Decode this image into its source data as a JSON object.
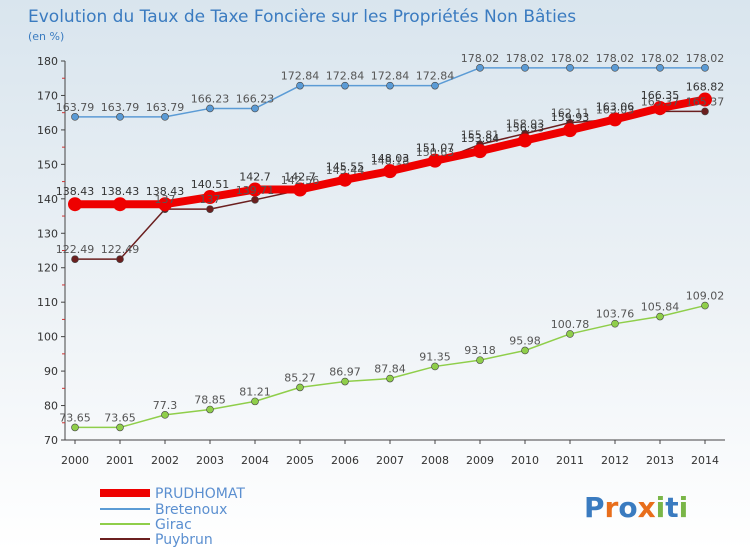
{
  "chart_data": {
    "type": "line",
    "title": "Evolution du Taux de Taxe Foncière sur les Propriétés Non Bâties",
    "subtitle": "(en %)",
    "x": [
      "2000",
      "2001",
      "2002",
      "2003",
      "2004",
      "2005",
      "2006",
      "2007",
      "2008",
      "2009",
      "2010",
      "2011",
      "2012",
      "2013",
      "2014"
    ],
    "ylim": [
      70,
      180
    ],
    "yticks": [
      70,
      80,
      90,
      100,
      110,
      120,
      130,
      140,
      150,
      160,
      170,
      180
    ],
    "grid": false,
    "legend_position": "bottom-left",
    "logo": "Proxiti",
    "series": [
      {
        "name": "PRUDHOMAT",
        "color": "#ee0000",
        "values": [
          138.43,
          138.43,
          138.43,
          140.51,
          142.7,
          142.7,
          145.55,
          148.03,
          151.07,
          153.84,
          156.93,
          159.93,
          163.06,
          166.35,
          168.82
        ],
        "labels": [
          "138.43",
          "138.43",
          "138.43",
          "140.51",
          "142.7",
          "142.7",
          "145.55",
          "148.03",
          "151.07",
          "153.84",
          "156.93",
          "159.93",
          "163.06",
          "166.35",
          "168.82"
        ]
      },
      {
        "name": "Bretenoux",
        "color": "#5b9bd5",
        "values": [
          163.79,
          163.79,
          163.79,
          166.23,
          166.23,
          172.84,
          172.84,
          172.84,
          172.84,
          178.02,
          178.02,
          178.02,
          178.02,
          178.02,
          178.02
        ],
        "labels": [
          "163.79",
          "163.79",
          "163.79",
          "166.23",
          "166.23",
          "172.84",
          "172.84",
          "172.84",
          "172.84",
          "178.02",
          "178.02",
          "178.02",
          "178.02",
          "178.02",
          "178.02"
        ]
      },
      {
        "name": "Girac",
        "color": "#8fce4a",
        "values": [
          73.65,
          73.65,
          77.3,
          78.85,
          81.21,
          85.27,
          86.97,
          87.84,
          91.35,
          93.18,
          95.98,
          100.78,
          103.76,
          105.84,
          109.02
        ],
        "labels": [
          "73.65",
          "73.65",
          "77.3",
          "78.85",
          "81.21",
          "85.27",
          "86.97",
          "87.84",
          "91.35",
          "93.18",
          "95.98",
          "100.78",
          "103.76",
          "105.84",
          "109.02"
        ]
      },
      {
        "name": "Puybrun",
        "color": "#6b1f1f",
        "values": [
          122.49,
          122.49,
          137.0,
          137.0,
          139.71,
          142.56,
          145.44,
          148.18,
          150.63,
          155.81,
          158.93,
          162.11,
          163.03,
          165.37,
          165.37
        ],
        "labels": [
          "122.49",
          "122.49",
          "137",
          "137",
          "139.71",
          "142.56",
          "145.44",
          "148.18",
          "150.63",
          "155.81",
          "158.93",
          "162.11",
          "163.03",
          "165.37",
          "165.37"
        ]
      }
    ]
  }
}
